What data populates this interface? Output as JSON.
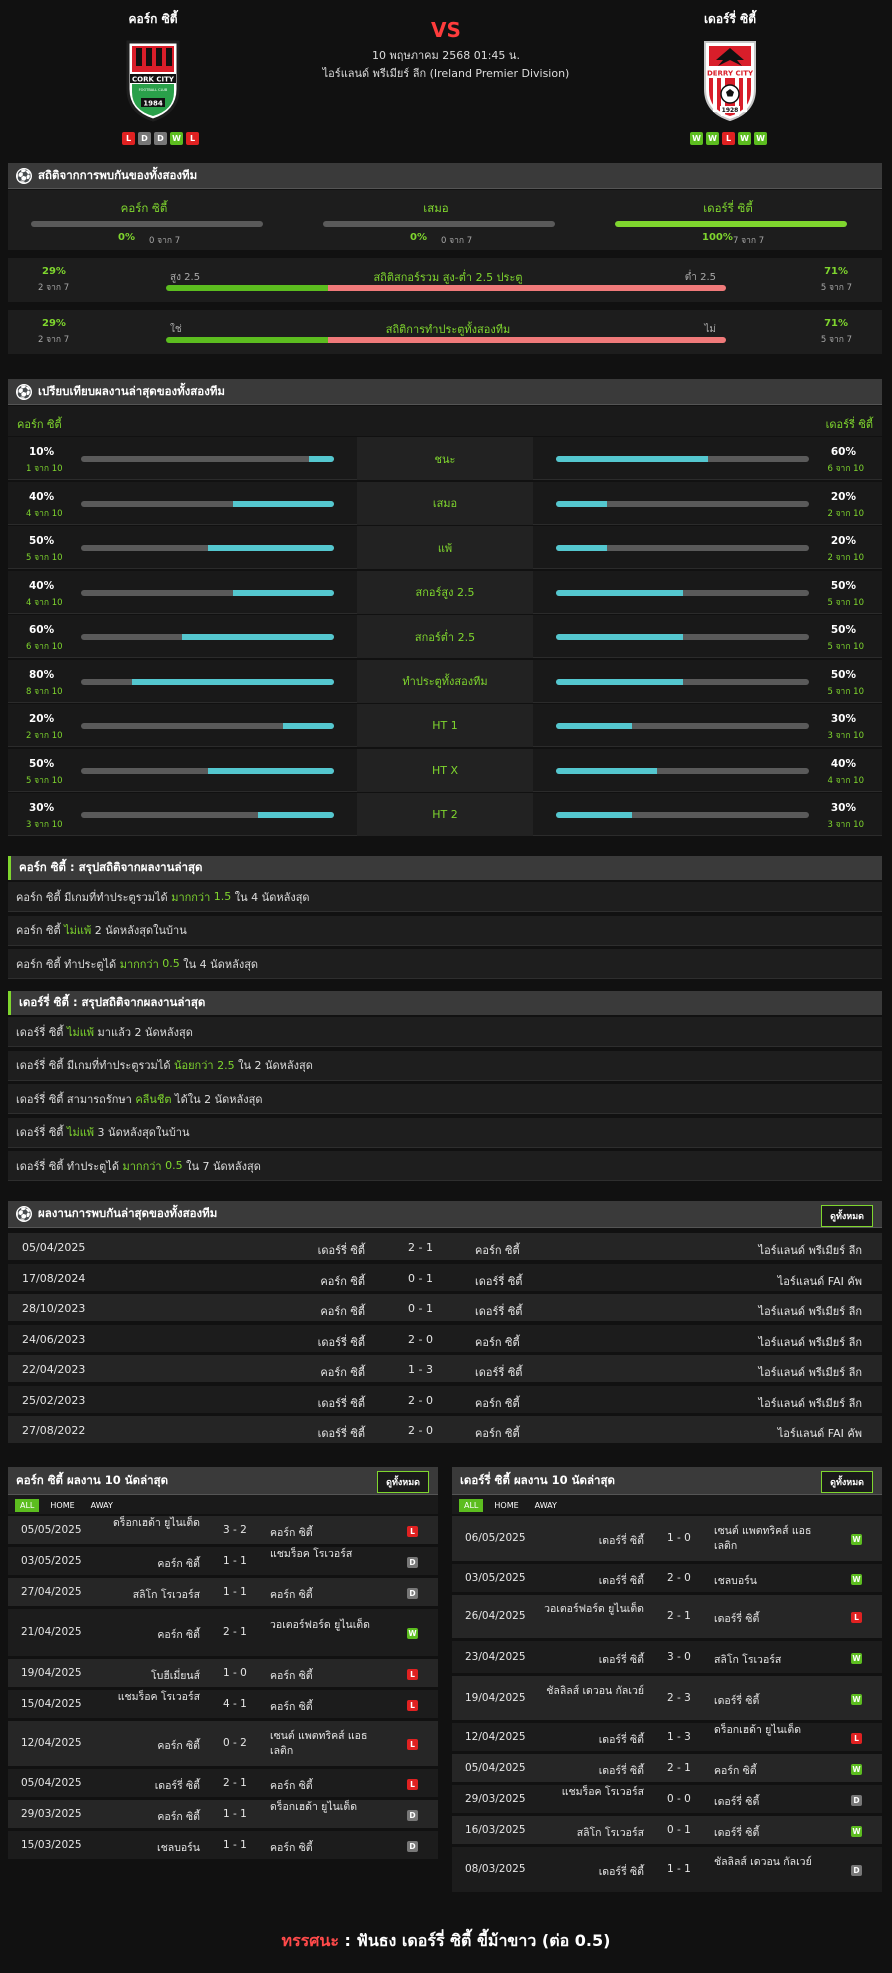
{
  "header": {
    "home": "คอร์ก ซิตี้",
    "away": "เดอร์รี่ ซิตี้",
    "vs": "VS",
    "date": "10 พฤษภาคม 2568 01:45 น.",
    "league": "ไอร์แลนด์ พรีเมียร์ ลีก (Ireland Premier Division)",
    "home_crest_text": "CORK CITY",
    "home_crest_sub": "FOOTBALL CLUB",
    "home_crest_year": "1984",
    "away_crest_text": "DERRY CITY",
    "away_crest_year": "1928",
    "home_form": [
      "L",
      "D",
      "D",
      "W",
      "L"
    ],
    "away_form": [
      "W",
      "W",
      "L",
      "W",
      "W"
    ],
    "colors": {
      "win": "#5cbd1f",
      "draw": "#777777",
      "loss": "#e02121",
      "accent": "#7fd62e",
      "bar_teal": "#54c7cf",
      "bar_red": "#f07a7a"
    }
  },
  "h2h_stats": {
    "title": "สถิติจากการพบกันของทั้งสองทีม",
    "cols": [
      {
        "name": "คอร์ก ซิตี้",
        "pct": "0%",
        "sub": "0 จาก 7",
        "fill": 0
      },
      {
        "name": "เสมอ",
        "pct": "0%",
        "sub": "0 จาก 7",
        "fill": 0
      },
      {
        "name": "เดอร์รี่ ซิตี้",
        "pct": "100%",
        "sub": "7 จาก 7",
        "fill": 1
      }
    ],
    "ou": {
      "left_pct": "29%",
      "left_sub": "2 จาก 7",
      "left_lbl": "สูง 2.5",
      "title": "สถิติสกอร์รวม สูง-ต่ำ 2.5 ประตู",
      "right_lbl": "ต่ำ 2.5",
      "right_pct": "71%",
      "right_sub": "5 จาก 7",
      "ratio": 0.29
    },
    "btts": {
      "left_pct": "29%",
      "left_sub": "2 จาก 7",
      "left_lbl": "ใช่",
      "title": "สถิติการทำประตูทั้งสองทีม",
      "right_lbl": "ไม่",
      "right_pct": "71%",
      "right_sub": "5 จาก 7",
      "ratio": 0.29
    }
  },
  "compare": {
    "title": "เปรียบเทียบผลงานล่าสุดของทั้งสองทีม",
    "home": "คอร์ก ซิตี้",
    "away": "เดอร์รี่ ซิตี้",
    "rows": [
      {
        "label": "ชนะ",
        "hp": "10%",
        "hs": "1 จาก 10",
        "h": 0.1,
        "ap": "60%",
        "as": "6 จาก 10",
        "a": 0.6
      },
      {
        "label": "เสมอ",
        "hp": "40%",
        "hs": "4 จาก 10",
        "h": 0.4,
        "ap": "20%",
        "as": "2 จาก 10",
        "a": 0.2
      },
      {
        "label": "แพ้",
        "hp": "50%",
        "hs": "5 จาก 10",
        "h": 0.5,
        "ap": "20%",
        "as": "2 จาก 10",
        "a": 0.2
      },
      {
        "label": "สกอร์สูง 2.5",
        "hp": "40%",
        "hs": "4 จาก 10",
        "h": 0.4,
        "ap": "50%",
        "as": "5 จาก 10",
        "a": 0.5
      },
      {
        "label": "สกอร์ต่ำ 2.5",
        "hp": "60%",
        "hs": "6 จาก 10",
        "h": 0.6,
        "ap": "50%",
        "as": "5 จาก 10",
        "a": 0.5
      },
      {
        "label": "ทำประตูทั้งสองทีม",
        "hp": "80%",
        "hs": "8 จาก 10",
        "h": 0.8,
        "ap": "50%",
        "as": "5 จาก 10",
        "a": 0.5
      },
      {
        "label": "HT 1",
        "hp": "20%",
        "hs": "2 จาก 10",
        "h": 0.2,
        "ap": "30%",
        "as": "3 จาก 10",
        "a": 0.3
      },
      {
        "label": "HT X",
        "hp": "50%",
        "hs": "5 จาก 10",
        "h": 0.5,
        "ap": "40%",
        "as": "4 จาก 10",
        "a": 0.4
      },
      {
        "label": "HT 2",
        "hp": "30%",
        "hs": "3 จาก 10",
        "h": 0.3,
        "ap": "30%",
        "as": "3 จาก 10",
        "a": 0.3
      }
    ]
  },
  "home_summary": {
    "title": "คอร์ก ซิตี้ : สรุปสถิติจากผลงานล่าสุด",
    "rows": [
      [
        [
          "คอร์ก ซิตี้ มีเกมที่ทำประตูรวมได้ ",
          0
        ],
        [
          "มากกว่า",
          1
        ],
        [
          " ",
          0
        ],
        [
          "1.5",
          1
        ],
        [
          " ใน 4 นัดหลังสุด",
          0
        ]
      ],
      [
        [
          "คอร์ก ซิตี้ ",
          0
        ],
        [
          "ไม่แพ้",
          1
        ],
        [
          " 2 นัดหลังสุดในบ้าน",
          0
        ]
      ],
      [
        [
          "คอร์ก ซิตี้ ทำประตูได้ ",
          0
        ],
        [
          "มากกว่า",
          1
        ],
        [
          " ",
          0
        ],
        [
          "0.5",
          1
        ],
        [
          " ใน 4 นัดหลังสุด",
          0
        ]
      ]
    ]
  },
  "away_summary": {
    "title": "เดอร์รี่ ซิตี้ : สรุปสถิติจากผลงานล่าสุด",
    "rows": [
      [
        [
          "เดอร์รี่ ซิตี้ ",
          0
        ],
        [
          "ไม่แพ้",
          1
        ],
        [
          " มาแล้ว 2 นัดหลังสุด",
          0
        ]
      ],
      [
        [
          "เดอร์รี่ ซิตี้ มีเกมที่ทำประตูรวมได้ ",
          0
        ],
        [
          "น้อยกว่า",
          1
        ],
        [
          " ",
          0
        ],
        [
          "2.5",
          1
        ],
        [
          " ใน 2 นัดหลังสุด",
          0
        ]
      ],
      [
        [
          "เดอร์รี่ ซิตี้ สามารถรักษา ",
          0
        ],
        [
          "คลีนชีต",
          1
        ],
        [
          " ได้ใน 2 นัดหลังสุด",
          0
        ]
      ],
      [
        [
          "เดอร์รี่ ซิตี้ ",
          0
        ],
        [
          "ไม่แพ้",
          1
        ],
        [
          " 3 นัดหลังสุดในบ้าน",
          0
        ]
      ],
      [
        [
          "เดอร์รี่ ซิตี้ ทำประตูได้ ",
          0
        ],
        [
          "มากกว่า",
          1
        ],
        [
          " ",
          0
        ],
        [
          "0.5",
          1
        ],
        [
          " ใน 7 นัดหลังสุด",
          0
        ]
      ]
    ]
  },
  "h2h": {
    "title": "ผลงานการพบกันล่าสุดของทั้งสองทีม",
    "view_all": "ดูทั้งหมด",
    "rows": [
      [
        "05/04/2025",
        "เดอร์รี่ ซิตี้",
        "2 - 1",
        "คอร์ก ซิตี้",
        "ไอร์แลนด์ พรีเมียร์ ลีก"
      ],
      [
        "17/08/2024",
        "คอร์ก ซิตี้",
        "0 - 1",
        "เดอร์รี่ ซิตี้",
        "ไอร์แลนด์ FAI คัพ"
      ],
      [
        "28/10/2023",
        "คอร์ก ซิตี้",
        "0 - 1",
        "เดอร์รี่ ซิตี้",
        "ไอร์แลนด์ พรีเมียร์ ลีก"
      ],
      [
        "24/06/2023",
        "เดอร์รี่ ซิตี้",
        "2 - 0",
        "คอร์ก ซิตี้",
        "ไอร์แลนด์ พรีเมียร์ ลีก"
      ],
      [
        "22/04/2023",
        "คอร์ก ซิตี้",
        "1 - 3",
        "เดอร์รี่ ซิตี้",
        "ไอร์แลนด์ พรีเมียร์ ลีก"
      ],
      [
        "25/02/2023",
        "เดอร์รี่ ซิตี้",
        "2 - 0",
        "คอร์ก ซิตี้",
        "ไอร์แลนด์ พรีเมียร์ ลีก"
      ],
      [
        "27/08/2022",
        "เดอร์รี่ ซิตี้",
        "2 - 0",
        "คอร์ก ซิตี้",
        "ไอร์แลนด์ FAI คัพ"
      ]
    ]
  },
  "home_last": {
    "title": "คอร์ก ซิตี้ ผลงาน 10 นัดล่าสุด",
    "view_all": "ดูทั้งหมด",
    "tabs": [
      "ALL",
      "HOME",
      "AWAY"
    ],
    "rows": [
      [
        "05/05/2025",
        "ดร็อกเฮด้า ยูไนเต็ด",
        "3 - 2",
        "คอร์ก ซิตี้",
        "L"
      ],
      [
        "03/05/2025",
        "คอร์ก ซิตี้",
        "1 - 1",
        "แชมร็อค โรเวอร์ส",
        "D"
      ],
      [
        "27/04/2025",
        "สลิโก โรเวอร์ส",
        "1 - 1",
        "คอร์ก ซิตี้",
        "D"
      ],
      [
        "21/04/2025",
        "คอร์ก ซิตี้",
        "2 - 1",
        "วอเตอร์ฟอร์ด ยูไนเต็ด",
        "W"
      ],
      [
        "19/04/2025",
        "โบฮีเมี่ยนส์",
        "1 - 0",
        "คอร์ก ซิตี้",
        "L"
      ],
      [
        "15/04/2025",
        "แชมร็อค โรเวอร์ส",
        "4 - 1",
        "คอร์ก ซิตี้",
        "L"
      ],
      [
        "12/04/2025",
        "คอร์ก ซิตี้",
        "0 - 2",
        "เซนต์ แพตทริคส์ แอธ เลติก",
        "L"
      ],
      [
        "05/04/2025",
        "เดอร์รี่ ซิตี้",
        "2 - 1",
        "คอร์ก ซิตี้",
        "L"
      ],
      [
        "29/03/2025",
        "คอร์ก ซิตี้",
        "1 - 1",
        "ดร็อกเฮด้า ยูไนเต็ด",
        "D"
      ],
      [
        "15/03/2025",
        "เชลบอร์น",
        "1 - 1",
        "คอร์ก ซิตี้",
        "D"
      ]
    ]
  },
  "away_last": {
    "title": "เดอร์รี่ ซิตี้ ผลงาน 10 นัดล่าสุด",
    "view_all": "ดูทั้งหมด",
    "tabs": [
      "ALL",
      "HOME",
      "AWAY"
    ],
    "rows": [
      [
        "06/05/2025",
        "เดอร์รี่ ซิตี้",
        "1 - 0",
        "เซนต์ แพตทริคส์ แอธ เลติก",
        "W"
      ],
      [
        "03/05/2025",
        "เดอร์รี่ ซิตี้",
        "2 - 0",
        "เชลบอร์น",
        "W"
      ],
      [
        "26/04/2025",
        "วอเตอร์ฟอร์ด ยูไนเต็ด",
        "2 - 1",
        "เดอร์รี่ ซิตี้",
        "L"
      ],
      [
        "23/04/2025",
        "เดอร์รี่ ซิตี้",
        "3 - 0",
        "สลิโก โรเวอร์ส",
        "W"
      ],
      [
        "19/04/2025",
        "ชัลลิลส์ เดวอน กัลเวย์",
        "2 - 3",
        "เดอร์รี่ ซิตี้",
        "W"
      ],
      [
        "12/04/2025",
        "เดอร์รี่ ซิตี้",
        "1 - 3",
        "ดร็อกเฮด้า ยูไนเต็ด",
        "L"
      ],
      [
        "05/04/2025",
        "เดอร์รี่ ซิตี้",
        "2 - 1",
        "คอร์ก ซิตี้",
        "W"
      ],
      [
        "29/03/2025",
        "แชมร็อค โรเวอร์ส",
        "0 - 0",
        "เดอร์รี่ ซิตี้",
        "D"
      ],
      [
        "16/03/2025",
        "สลิโก โรเวอร์ส",
        "0 - 1",
        "เดอร์รี่ ซิตี้",
        "W"
      ],
      [
        "08/03/2025",
        "เดอร์รี่ ซิตี้",
        "1 - 1",
        "ชัลลิลส์ เดวอน กัลเวย์",
        "D"
      ]
    ]
  },
  "prediction": {
    "label": "ทรรศนะ",
    "sep": " : ",
    "text": "ฟันธง เดอร์รี่ ซิตี้ ขี้ม้าขาว (ต่อ 0.5)"
  }
}
